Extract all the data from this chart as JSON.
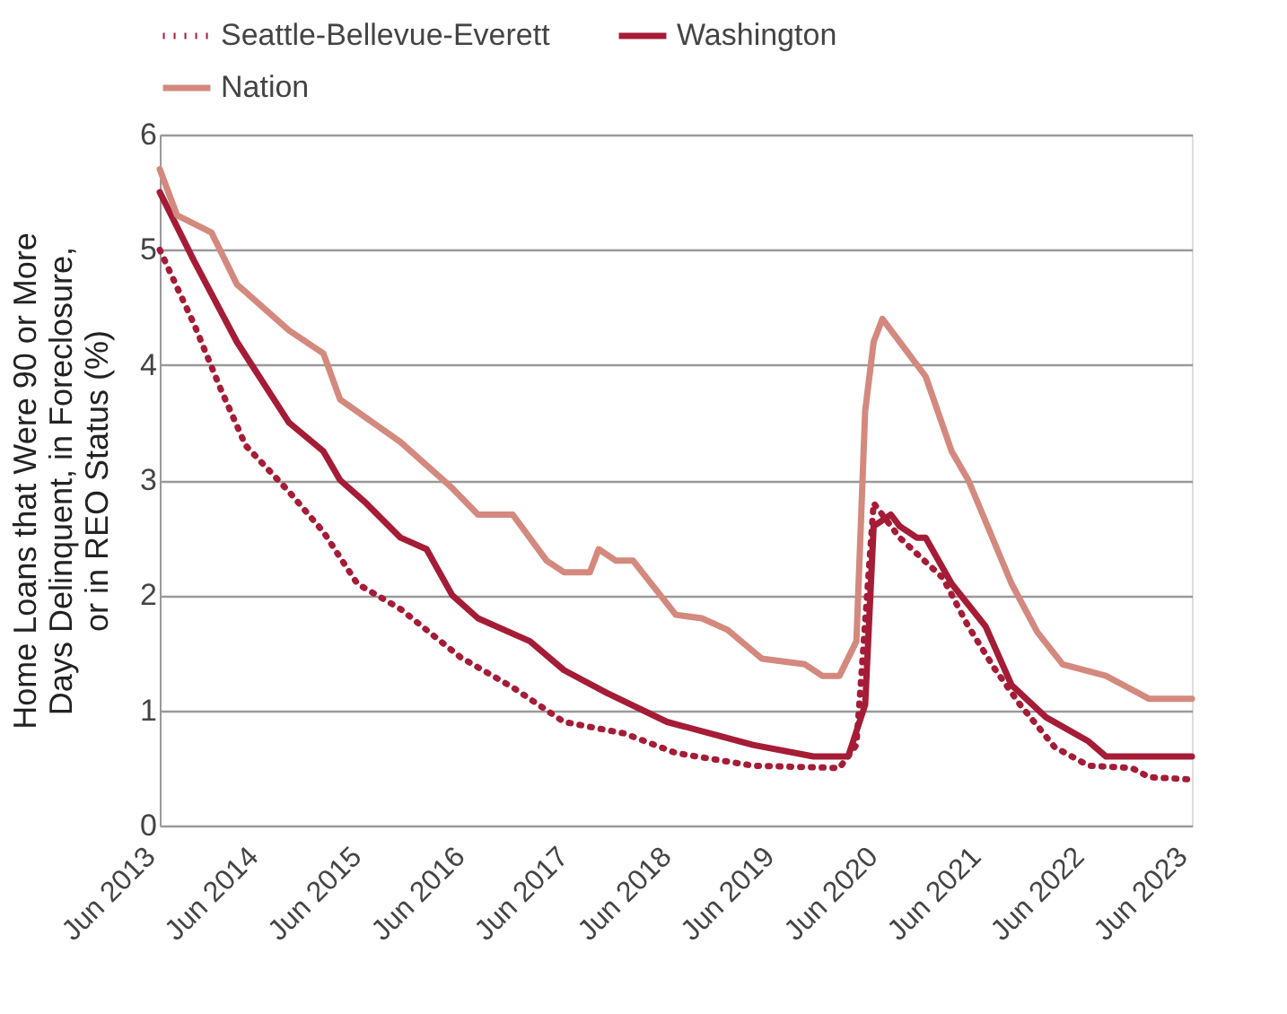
{
  "chart_data": {
    "type": "line",
    "ylabel": "Home Loans that Were 90 or More Days Delinquent, in Foreclosure, or in REO Status (%)",
    "xlim": [
      "2013-06",
      "2023-06"
    ],
    "xticks": [
      {
        "value": "2013-06",
        "label": "Jun 2013"
      },
      {
        "value": "2014-06",
        "label": "Jun 2014"
      },
      {
        "value": "2015-06",
        "label": "Jun 2015"
      },
      {
        "value": "2016-06",
        "label": "Jun 2016"
      },
      {
        "value": "2017-06",
        "label": "Jun 2017"
      },
      {
        "value": "2018-06",
        "label": "Jun 2018"
      },
      {
        "value": "2019-06",
        "label": "Jun 2019"
      },
      {
        "value": "2020-06",
        "label": "Jun 2020"
      },
      {
        "value": "2021-06",
        "label": "Jun 2021"
      },
      {
        "value": "2022-06",
        "label": "Jun 2022"
      },
      {
        "value": "2023-06",
        "label": "Jun 2023"
      }
    ],
    "ylim": [
      0,
      6
    ],
    "yticks": [
      0,
      1,
      2,
      3,
      4,
      5,
      6
    ],
    "grid": "y",
    "legend": "top",
    "marker": "none",
    "series": [
      {
        "name": "Seattle-Bellevue-Everett",
        "color": "#a51c36",
        "line_style": "dotted",
        "x": [
          "2013-06",
          "2013-10",
          "2014-01",
          "2014-04",
          "2014-09",
          "2015-01",
          "2015-05",
          "2015-10",
          "2016-05",
          "2016-11",
          "2017-05",
          "2017-12",
          "2018-06",
          "2019-03",
          "2020-01",
          "2020-03",
          "2020-05",
          "2020-08",
          "2021-01",
          "2021-04",
          "2021-07",
          "2021-10",
          "2022-02",
          "2022-06",
          "2022-11",
          "2023-01",
          "2023-06"
        ],
        "values": [
          5.0,
          4.35,
          3.8,
          3.3,
          2.9,
          2.55,
          2.1,
          1.88,
          1.46,
          1.2,
          0.9,
          0.8,
          0.63,
          0.52,
          0.5,
          0.7,
          2.8,
          2.5,
          2.15,
          1.73,
          1.37,
          1.05,
          0.68,
          0.52,
          0.5,
          0.42,
          0.4
        ]
      },
      {
        "name": "Washington",
        "color": "#a51c36",
        "line_style": "solid",
        "x": [
          "2013-06",
          "2013-10",
          "2014-03",
          "2014-09",
          "2015-01",
          "2015-03",
          "2015-06",
          "2015-10",
          "2016-01",
          "2016-04",
          "2016-07",
          "2017-01",
          "2017-05",
          "2017-10",
          "2018-05",
          "2018-10",
          "2019-03",
          "2019-10",
          "2020-02",
          "2020-04",
          "2020-05",
          "2020-07",
          "2020-08",
          "2020-10",
          "2020-11",
          "2021-02",
          "2021-06",
          "2021-09",
          "2022-01",
          "2022-06",
          "2022-08",
          "2023-06"
        ],
        "values": [
          5.5,
          4.9,
          4.2,
          3.5,
          3.25,
          3.0,
          2.8,
          2.5,
          2.4,
          2.0,
          1.8,
          1.6,
          1.35,
          1.15,
          0.9,
          0.8,
          0.7,
          0.6,
          0.6,
          1.05,
          2.6,
          2.7,
          2.6,
          2.5,
          2.5,
          2.1,
          1.73,
          1.22,
          0.94,
          0.73,
          0.6,
          0.6
        ]
      },
      {
        "name": "Nation",
        "color": "#d4897e",
        "line_style": "solid",
        "x": [
          "2013-06",
          "2013-08",
          "2013-12",
          "2014-03",
          "2014-09",
          "2015-01",
          "2015-03",
          "2015-10",
          "2016-04",
          "2016-07",
          "2016-11",
          "2017-03",
          "2017-05",
          "2017-08",
          "2017-09",
          "2017-11",
          "2018-01",
          "2018-06",
          "2018-09",
          "2018-12",
          "2019-04",
          "2019-06",
          "2019-09",
          "2019-11",
          "2020-01",
          "2020-03",
          "2020-04",
          "2020-05",
          "2020-06",
          "2020-11",
          "2021-02",
          "2021-04",
          "2021-09",
          "2021-12",
          "2022-03",
          "2022-08",
          "2023-01",
          "2023-06"
        ],
        "values": [
          5.7,
          5.3,
          5.15,
          4.7,
          4.3,
          4.1,
          3.7,
          3.33,
          2.93,
          2.7,
          2.7,
          2.3,
          2.2,
          2.2,
          2.4,
          2.3,
          2.3,
          1.83,
          1.8,
          1.7,
          1.45,
          1.43,
          1.4,
          1.3,
          1.3,
          1.6,
          3.6,
          4.2,
          4.4,
          3.9,
          3.25,
          3.0,
          2.1,
          1.68,
          1.4,
          1.3,
          1.1,
          1.1
        ]
      }
    ]
  }
}
